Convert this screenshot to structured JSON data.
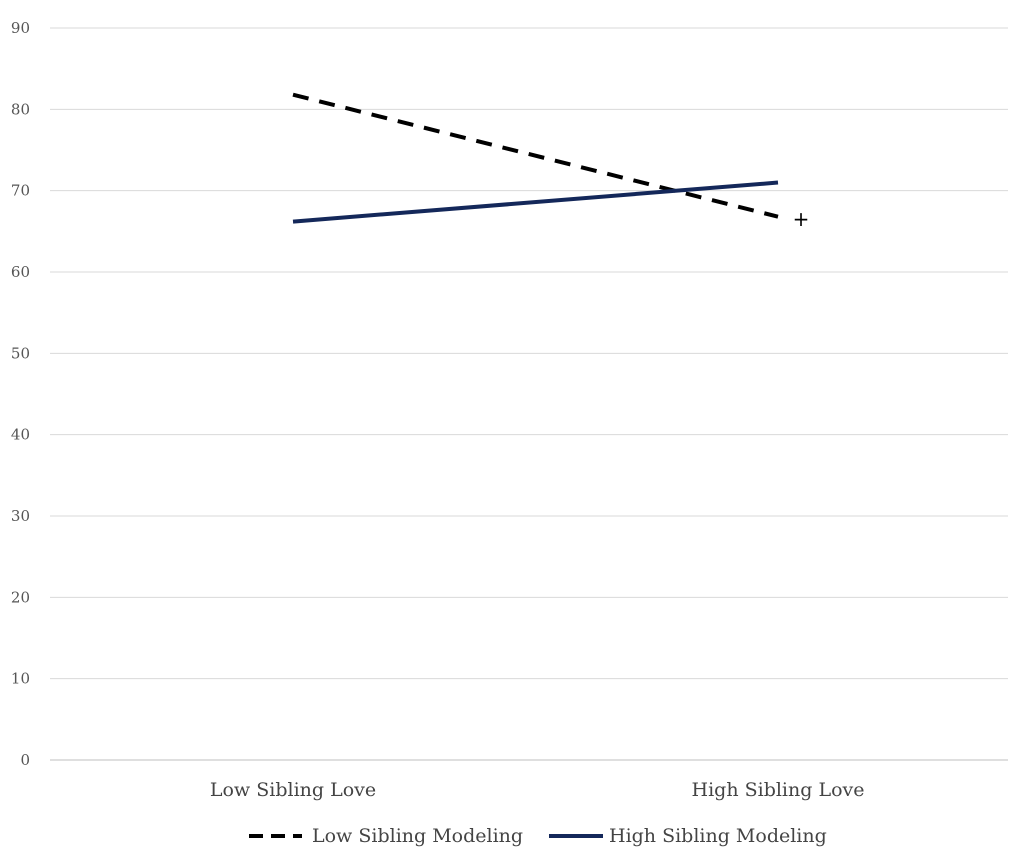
{
  "chart_data": {
    "type": "line",
    "categories": [
      "Low Sibling Love",
      "High Sibling Love"
    ],
    "series": [
      {
        "name": "Low Sibling Modeling",
        "values": [
          81.8,
          66.8
        ],
        "color": "#000000",
        "dash": "dashed"
      },
      {
        "name": "High Sibling Modeling",
        "values": [
          66.2,
          71.0
        ],
        "color": "#14285a",
        "dash": "solid"
      }
    ],
    "ylim": [
      0,
      90
    ],
    "yticks": [
      0,
      10,
      20,
      30,
      40,
      50,
      60,
      70,
      80,
      90
    ],
    "grid": true,
    "legend": "bottom",
    "annotations": [
      {
        "text": "+",
        "category": "High Sibling Love",
        "y": 66.5
      }
    ]
  }
}
